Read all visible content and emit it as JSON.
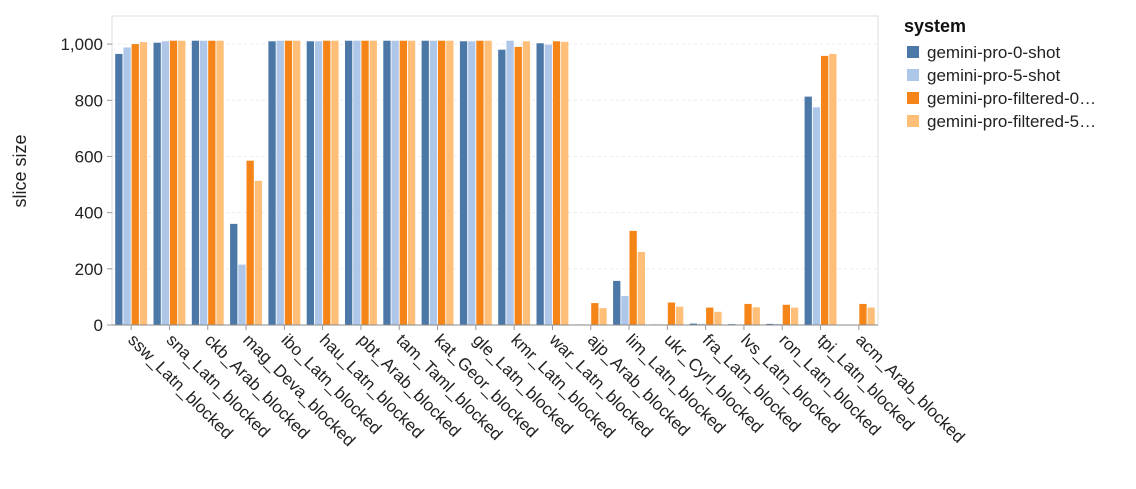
{
  "chart_data": {
    "type": "bar",
    "ylabel": "slice size",
    "xlabel": "",
    "ylim": [
      0,
      1100
    ],
    "yticks": [
      0,
      200,
      400,
      600,
      800,
      1000
    ],
    "ytick_labels": [
      "0",
      "200",
      "400",
      "600",
      "800",
      "1,000"
    ],
    "grid": "horizontal",
    "legend_position": "right",
    "legend_title": "system",
    "categories": [
      "ssw_Latn_blocked",
      "sna_Latn_blocked",
      "ckb_Arab_blocked",
      "mag_Deva_blocked",
      "ibo_Latn_blocked",
      "hau_Latn_blocked",
      "pbt_Arab_blocked",
      "tam_Taml_blocked",
      "kat_Geor_blocked",
      "gle_Latn_blocked",
      "kmr_Latn_blocked",
      "war_Latn_blocked",
      "ajp_Arab_blocked",
      "lim_Latn_blocked",
      "ukr_Cyrl_blocked",
      "fra_Latn_blocked",
      "lvs_Latn_blocked",
      "ron_Latn_blocked",
      "tpi_Latn_blocked",
      "acm_Arab_blocked"
    ],
    "series": [
      {
        "name": "gemini-pro-0-shot",
        "color": "#4c78a8",
        "values": [
          965,
          1005,
          1012,
          360,
          1010,
          1010,
          1012,
          1012,
          1012,
          1010,
          980,
          1003,
          2,
          157,
          2,
          5,
          3,
          4,
          813,
          0
        ]
      },
      {
        "name": "gemini-pro-5-shot",
        "color": "#aec7e8",
        "values": [
          988,
          1010,
          1012,
          215,
          1012,
          1010,
          1012,
          1012,
          1012,
          1010,
          1012,
          998,
          2,
          103,
          2,
          4,
          2,
          4,
          775,
          0
        ]
      },
      {
        "name": "gemini-pro-filtered-0…",
        "color": "#f58518",
        "values": [
          1000,
          1012,
          1012,
          585,
          1012,
          1012,
          1012,
          1012,
          1012,
          1012,
          990,
          1010,
          78,
          335,
          80,
          62,
          75,
          72,
          958,
          75
        ]
      },
      {
        "name": "gemini-pro-filtered-5…",
        "color": "#ffbf79",
        "values": [
          1007,
          1012,
          1012,
          513,
          1012,
          1012,
          1012,
          1012,
          1012,
          1012,
          1010,
          1008,
          60,
          260,
          65,
          47,
          63,
          62,
          965,
          62
        ]
      }
    ]
  }
}
